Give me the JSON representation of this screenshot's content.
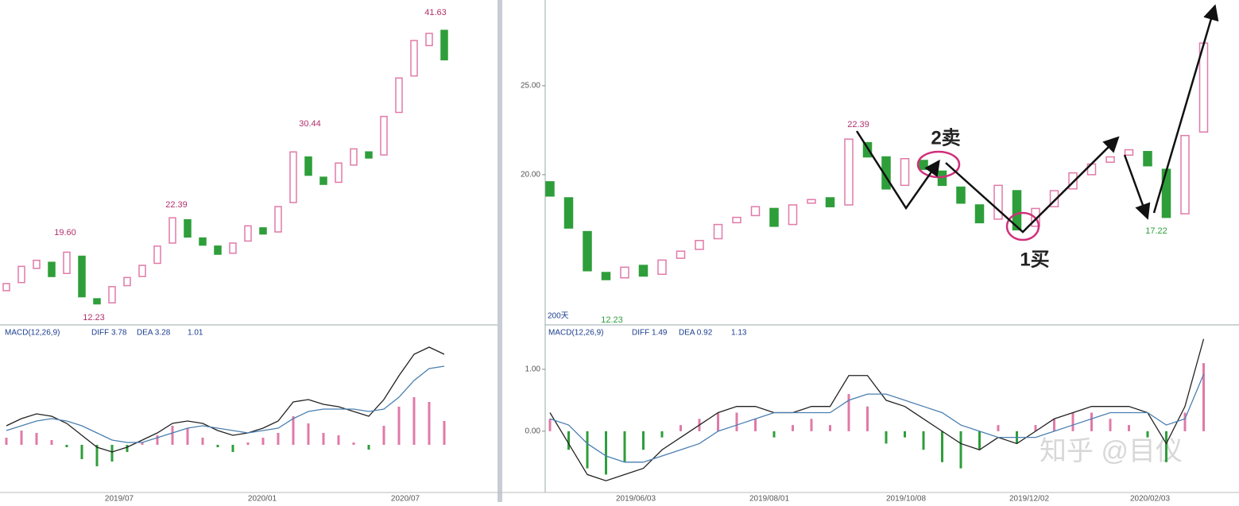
{
  "chart_data": [
    {
      "type": "candlestick",
      "up_color": "#e07aa8",
      "down_color": "#2e9e3a",
      "open": [
        14.8,
        15.6,
        17.0,
        17.6,
        16.5,
        18.2,
        14.0,
        13.6,
        15.3,
        16.2,
        17.5,
        19.5,
        21.8,
        20.0,
        19.2,
        18.5,
        19.7,
        21.0,
        20.6,
        23.5,
        28.0,
        26.0,
        25.5,
        27.2,
        28.5,
        28.2,
        32.4,
        36.0,
        39.0,
        40.5
      ],
      "close": [
        15.5,
        17.2,
        17.8,
        16.2,
        18.6,
        14.2,
        13.5,
        15.2,
        16.1,
        17.3,
        19.2,
        22.0,
        20.1,
        19.3,
        18.4,
        19.5,
        21.2,
        20.4,
        23.1,
        28.5,
        26.2,
        25.3,
        27.4,
        28.8,
        27.9,
        32.0,
        35.8,
        39.5,
        40.2,
        37.6
      ],
      "ylim": [
        11.5,
        43.5
      ],
      "price_labels": [
        "41.63",
        "30.44",
        "22.39",
        "19.60",
        "12.23"
      ],
      "xtick_labels": [
        "2019/07",
        "2020/01",
        "2020/07"
      ],
      "macd": {
        "legend": "MACD(12,26,9)",
        "diff_label": "DIFF 3.78",
        "dea_label": "DEA 3.28",
        "value_label": "1.01",
        "ylim": [
          -2,
          5
        ],
        "diff_color": "#222222",
        "dea_color": "#4a7fb0",
        "hist": [
          0.3,
          0.6,
          0.5,
          0.2,
          -0.1,
          -0.6,
          -0.9,
          -0.7,
          -0.3,
          0.1,
          0.4,
          0.8,
          0.7,
          0.3,
          -0.1,
          -0.3,
          0.1,
          0.3,
          0.5,
          1.2,
          0.9,
          0.5,
          0.4,
          0.1,
          -0.2,
          0.8,
          1.6,
          2.0,
          1.8,
          1.0
        ],
        "diff": [
          0.8,
          1.1,
          1.3,
          1.2,
          0.9,
          0.4,
          -0.1,
          -0.3,
          -0.1,
          0.2,
          0.5,
          0.9,
          1.0,
          0.9,
          0.6,
          0.4,
          0.5,
          0.7,
          1.0,
          1.8,
          1.9,
          1.7,
          1.6,
          1.4,
          1.2,
          1.9,
          2.9,
          3.8,
          4.1,
          3.8
        ],
        "dea": [
          0.6,
          0.8,
          1.0,
          1.1,
          1.0,
          0.8,
          0.5,
          0.2,
          0.1,
          0.1,
          0.3,
          0.5,
          0.7,
          0.8,
          0.7,
          0.6,
          0.5,
          0.6,
          0.7,
          1.1,
          1.4,
          1.5,
          1.5,
          1.5,
          1.4,
          1.5,
          2.0,
          2.7,
          3.2,
          3.3
        ]
      }
    },
    {
      "type": "candlestick",
      "up_color": "#e07aa8",
      "down_color": "#2e9e3a",
      "open": [
        19.6,
        18.7,
        16.8,
        14.5,
        14.2,
        14.9,
        14.4,
        15.3,
        15.8,
        16.4,
        17.3,
        17.7,
        18.1,
        17.2,
        18.4,
        18.7,
        18.3,
        21.8,
        21.0,
        19.4,
        20.8,
        20.2,
        19.3,
        18.3,
        17.5,
        19.1,
        17.1,
        18.2,
        19.2,
        20.0,
        20.7,
        21.1,
        21.3,
        20.3,
        17.8,
        22.4
      ],
      "close": [
        18.8,
        17.0,
        14.6,
        14.1,
        14.8,
        14.3,
        15.2,
        15.7,
        16.3,
        17.2,
        17.6,
        18.2,
        17.1,
        18.3,
        18.6,
        18.2,
        22.0,
        21.0,
        19.2,
        20.9,
        20.3,
        19.4,
        18.4,
        17.3,
        19.4,
        16.9,
        18.1,
        19.1,
        20.1,
        20.6,
        21.0,
        21.4,
        20.5,
        17.6,
        22.2,
        27.4
      ],
      "ylim": [
        11.6,
        29.82
      ],
      "yticks": [
        {
          "value": 25,
          "label": "25.00"
        },
        {
          "value": 20,
          "label": "20.00"
        }
      ],
      "price_labels": [
        "22.39",
        "17.22",
        "12.23"
      ],
      "period_label": "200天",
      "annotations": [
        "2卖",
        "1买"
      ],
      "watermark": "知乎 @目仪",
      "xtick_labels": [
        "2019/06/03",
        "2019/08/01",
        "2019/10/08",
        "2019/12/02",
        "2020/02/03"
      ],
      "macd": {
        "legend": "MACD(12,26,9)",
        "diff_label": "DIFF 1.49",
        "dea_label": "DEA 0.92",
        "value_label": "1.13",
        "ylim": [
          -0.99,
          1.705
        ],
        "diff_color": "#222222",
        "dea_color": "#4a7fb0",
        "yticks": [
          {
            "value": 1,
            "label": "1.00"
          },
          {
            "value": 0,
            "label": "0.00"
          }
        ],
        "hist": [
          0.2,
          -0.3,
          -0.6,
          -0.7,
          -0.5,
          -0.3,
          -0.1,
          0.1,
          0.2,
          0.3,
          0.3,
          0.2,
          -0.1,
          0.1,
          0.2,
          0.1,
          0.6,
          0.4,
          -0.2,
          -0.1,
          -0.3,
          -0.5,
          -0.6,
          -0.3,
          0.1,
          -0.2,
          0.1,
          0.2,
          0.3,
          0.3,
          0.2,
          0.1,
          -0.1,
          -0.5,
          0.3,
          1.1
        ],
        "diff": [
          0.3,
          -0.2,
          -0.7,
          -0.8,
          -0.7,
          -0.6,
          -0.3,
          -0.1,
          0.1,
          0.3,
          0.4,
          0.4,
          0.3,
          0.3,
          0.4,
          0.4,
          0.9,
          0.9,
          0.5,
          0.4,
          0.2,
          0.0,
          -0.2,
          -0.3,
          -0.1,
          -0.2,
          0.0,
          0.2,
          0.3,
          0.4,
          0.4,
          0.4,
          0.3,
          -0.2,
          0.4,
          1.49
        ],
        "dea": [
          0.2,
          0.1,
          -0.2,
          -0.4,
          -0.5,
          -0.5,
          -0.4,
          -0.3,
          -0.2,
          0.0,
          0.1,
          0.2,
          0.3,
          0.3,
          0.3,
          0.3,
          0.5,
          0.6,
          0.6,
          0.5,
          0.4,
          0.3,
          0.1,
          0.0,
          -0.1,
          -0.1,
          -0.1,
          0.0,
          0.1,
          0.2,
          0.3,
          0.3,
          0.3,
          0.1,
          0.2,
          0.92
        ]
      }
    }
  ]
}
